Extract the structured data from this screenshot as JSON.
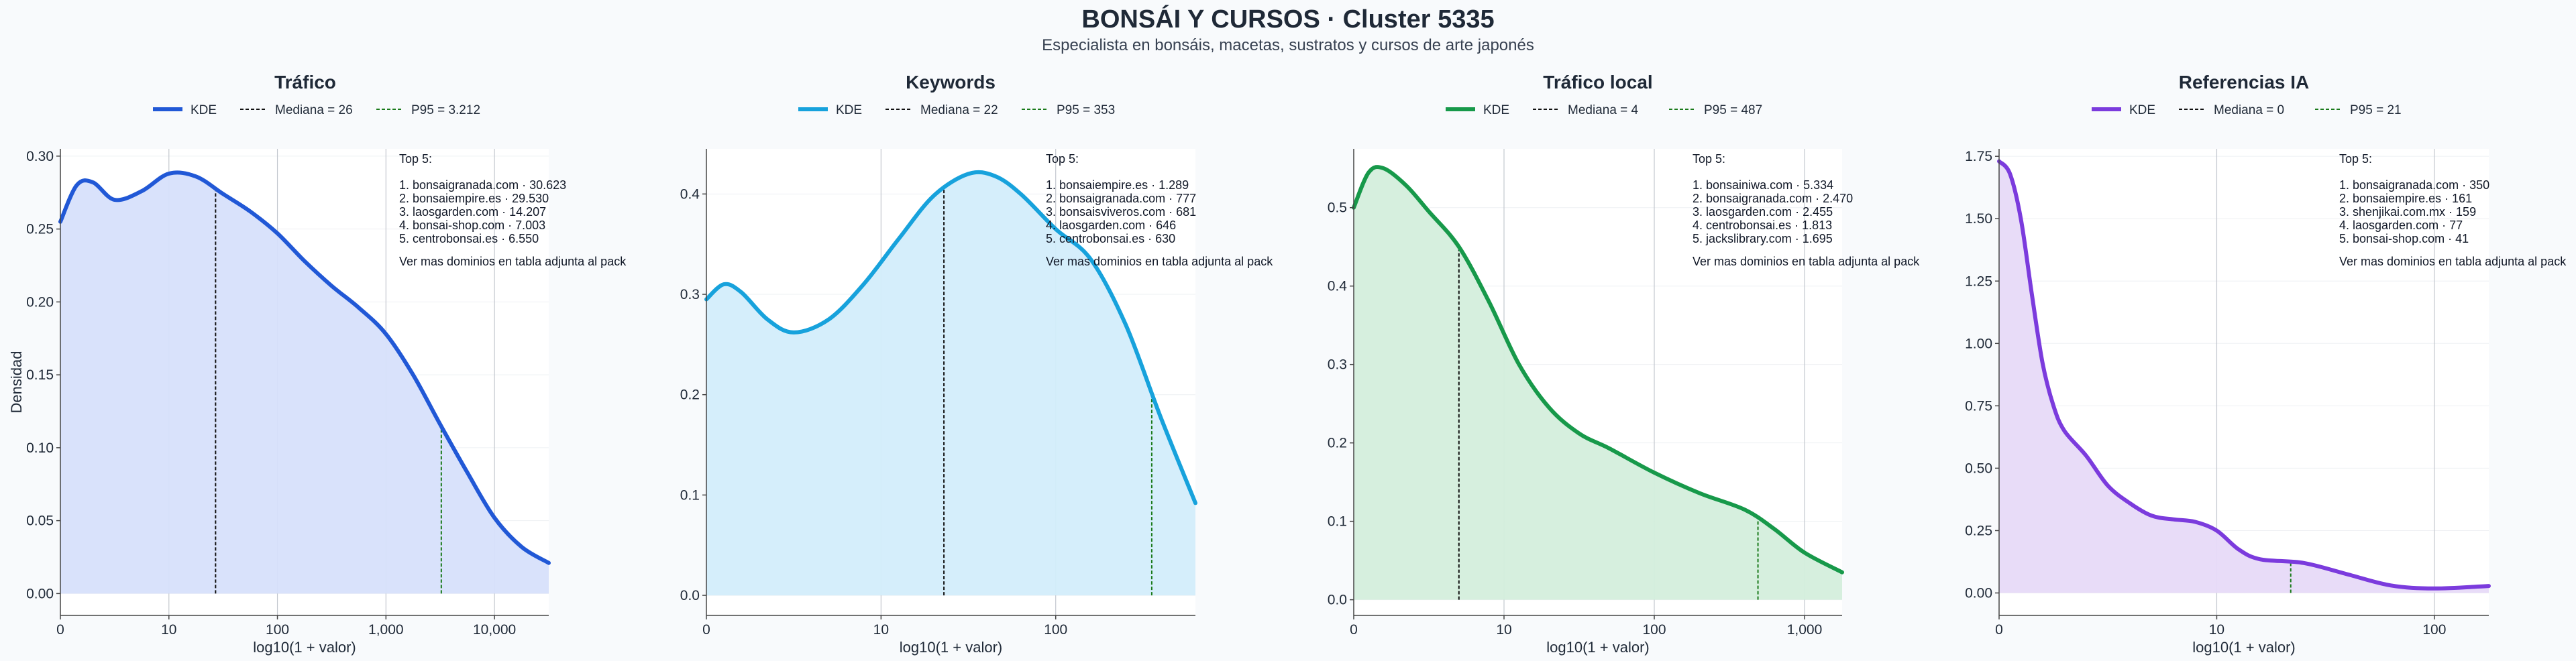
{
  "title": "BONSÁI Y CURSOS · Cluster 5335",
  "subtitle": "Especialista en bonsáis, macetas, sustratos y cursos de arte japonés",
  "shared_ylabel": "Densidad",
  "chart_data": [
    {
      "type": "area",
      "title": "Tráfico",
      "color": "#2158d6",
      "fill": "#d7e0fb",
      "legend": [
        "KDE",
        "Mediana = 26",
        "P95 = 3.212"
      ],
      "xlabel": "log10(1 + valor)",
      "xlim": [
        0,
        4.5
      ],
      "xticks": [
        0,
        1,
        2,
        3,
        4
      ],
      "xtick_labels": [
        "0",
        "10",
        "100",
        "1,000",
        "10,000"
      ],
      "ylim": [
        -0.015,
        0.305
      ],
      "yticks": [
        0,
        0.05,
        0.1,
        0.15,
        0.2,
        0.25,
        0.3
      ],
      "ytick_labels": [
        "0.00",
        "0.05",
        "0.10",
        "0.15",
        "0.20",
        "0.25",
        "0.30"
      ],
      "median_x": 1.43,
      "p95_x": 3.51,
      "x": [
        0,
        0.15,
        0.3,
        0.5,
        0.75,
        1,
        1.25,
        1.5,
        1.75,
        2,
        2.25,
        2.5,
        2.75,
        3,
        3.25,
        3.5,
        3.75,
        4,
        4.25,
        4.5
      ],
      "y": [
        0.255,
        0.28,
        0.282,
        0.27,
        0.276,
        0.288,
        0.286,
        0.274,
        0.262,
        0.247,
        0.228,
        0.211,
        0.196,
        0.178,
        0.15,
        0.116,
        0.083,
        0.052,
        0.032,
        0.021
      ],
      "top_title": "Top 5:",
      "top_items": [
        "1. bonsaigranada.com · 30.623",
        "2. bonsaiempire.es · 29.530",
        "3. laosgarden.com · 14.207",
        "4. bonsai-shop.com · 7.003",
        "5. centrobonsai.es · 6.550"
      ],
      "top_note": "Ver mas dominios en tabla adjunta al pack"
    },
    {
      "type": "area",
      "title": "Keywords",
      "color": "#17a2dc",
      "fill": "#d3edfb",
      "legend": [
        "KDE",
        "Mediana = 22",
        "P95 = 353"
      ],
      "xlabel": "log10(1 + valor)",
      "xlim": [
        0,
        2.8
      ],
      "xticks": [
        0,
        1,
        2
      ],
      "xtick_labels": [
        "0",
        "10",
        "100"
      ],
      "ylim": [
        -0.02,
        0.445
      ],
      "yticks": [
        0,
        0.1,
        0.2,
        0.3,
        0.4
      ],
      "ytick_labels": [
        "0.0",
        "0.1",
        "0.2",
        "0.3",
        "0.4"
      ],
      "median_x": 1.36,
      "p95_x": 2.55,
      "x": [
        0,
        0.1,
        0.2,
        0.35,
        0.5,
        0.7,
        0.9,
        1.1,
        1.3,
        1.5,
        1.65,
        1.8,
        2,
        2.2,
        2.4,
        2.6,
        2.8
      ],
      "y": [
        0.295,
        0.31,
        0.302,
        0.275,
        0.262,
        0.275,
        0.31,
        0.355,
        0.398,
        0.42,
        0.418,
        0.4,
        0.365,
        0.335,
        0.27,
        0.178,
        0.092
      ],
      "top_title": "Top 5:",
      "top_items": [
        "1. bonsaiempire.es · 1.289",
        "2. bonsaigranada.com · 777",
        "3. bonsaisviveros.com · 681",
        "4. laosgarden.com · 646",
        "5. centrobonsai.es · 630"
      ],
      "top_note": "Ver mas dominios en tabla adjunta al pack"
    },
    {
      "type": "area",
      "title": "Tráfico local",
      "color": "#17994a",
      "fill": "#d4eedc",
      "legend": [
        "KDE",
        "Mediana = 4",
        "P95 = 487"
      ],
      "xlabel": "log10(1 + valor)",
      "xlim": [
        0,
        3.25
      ],
      "xticks": [
        0,
        1,
        2,
        3
      ],
      "xtick_labels": [
        "0",
        "10",
        "100",
        "1,000"
      ],
      "ylim": [
        -0.02,
        0.575
      ],
      "yticks": [
        0,
        0.1,
        0.2,
        0.3,
        0.4,
        0.5
      ],
      "ytick_labels": [
        "0.0",
        "0.1",
        "0.2",
        "0.3",
        "0.4",
        "0.5"
      ],
      "median_x": 0.7,
      "p95_x": 2.69,
      "x": [
        0,
        0.1,
        0.2,
        0.35,
        0.5,
        0.7,
        0.9,
        1.1,
        1.3,
        1.5,
        1.7,
        2,
        2.3,
        2.6,
        2.8,
        3,
        3.25
      ],
      "y": [
        0.5,
        0.545,
        0.55,
        0.528,
        0.495,
        0.45,
        0.38,
        0.3,
        0.245,
        0.212,
        0.193,
        0.162,
        0.136,
        0.115,
        0.09,
        0.06,
        0.035
      ],
      "top_title": "Top 5:",
      "top_items": [
        "1. bonsainiwa.com · 5.334",
        "2. bonsaigranada.com · 2.470",
        "3. laosgarden.com · 2.455",
        "4. centrobonsai.es · 1.813",
        "5. jackslibrary.com · 1.695"
      ],
      "top_note": "Ver mas dominios en tabla adjunta al pack"
    },
    {
      "type": "area",
      "title": "Referencias IA",
      "color": "#7b3bdd",
      "fill": "#e7daf8",
      "legend": [
        "KDE",
        "Mediana = 0",
        "P95 = 21"
      ],
      "xlabel": "log10(1 + valor)",
      "xlim": [
        0,
        2.25
      ],
      "xticks": [
        0,
        1,
        2
      ],
      "xtick_labels": [
        "0",
        "10",
        "100"
      ],
      "ylim": [
        -0.09,
        1.78
      ],
      "yticks": [
        0,
        0.25,
        0.5,
        0.75,
        1.0,
        1.25,
        1.5,
        1.75
      ],
      "ytick_labels": [
        "0.00",
        "0.25",
        "0.50",
        "0.75",
        "1.00",
        "1.25",
        "1.50",
        "1.75"
      ],
      "median_x": 0,
      "p95_x": 1.34,
      "x": [
        0,
        0.05,
        0.1,
        0.15,
        0.2,
        0.25,
        0.3,
        0.4,
        0.5,
        0.6,
        0.7,
        0.8,
        0.9,
        1,
        1.1,
        1.2,
        1.4,
        1.6,
        1.8,
        2,
        2.25
      ],
      "y": [
        1.73,
        1.68,
        1.5,
        1.2,
        0.92,
        0.75,
        0.65,
        0.55,
        0.43,
        0.36,
        0.31,
        0.295,
        0.285,
        0.25,
        0.175,
        0.135,
        0.12,
        0.075,
        0.03,
        0.018,
        0.028
      ],
      "top_title": "Top 5:",
      "top_items": [
        "1. bonsaigranada.com · 350",
        "2. bonsaiempire.es · 161",
        "3. shenjikai.com.mx · 159",
        "4. laosgarden.com · 77",
        "5. bonsai-shop.com · 41"
      ],
      "top_note": "Ver mas dominios en tabla adjunta al pack"
    }
  ]
}
